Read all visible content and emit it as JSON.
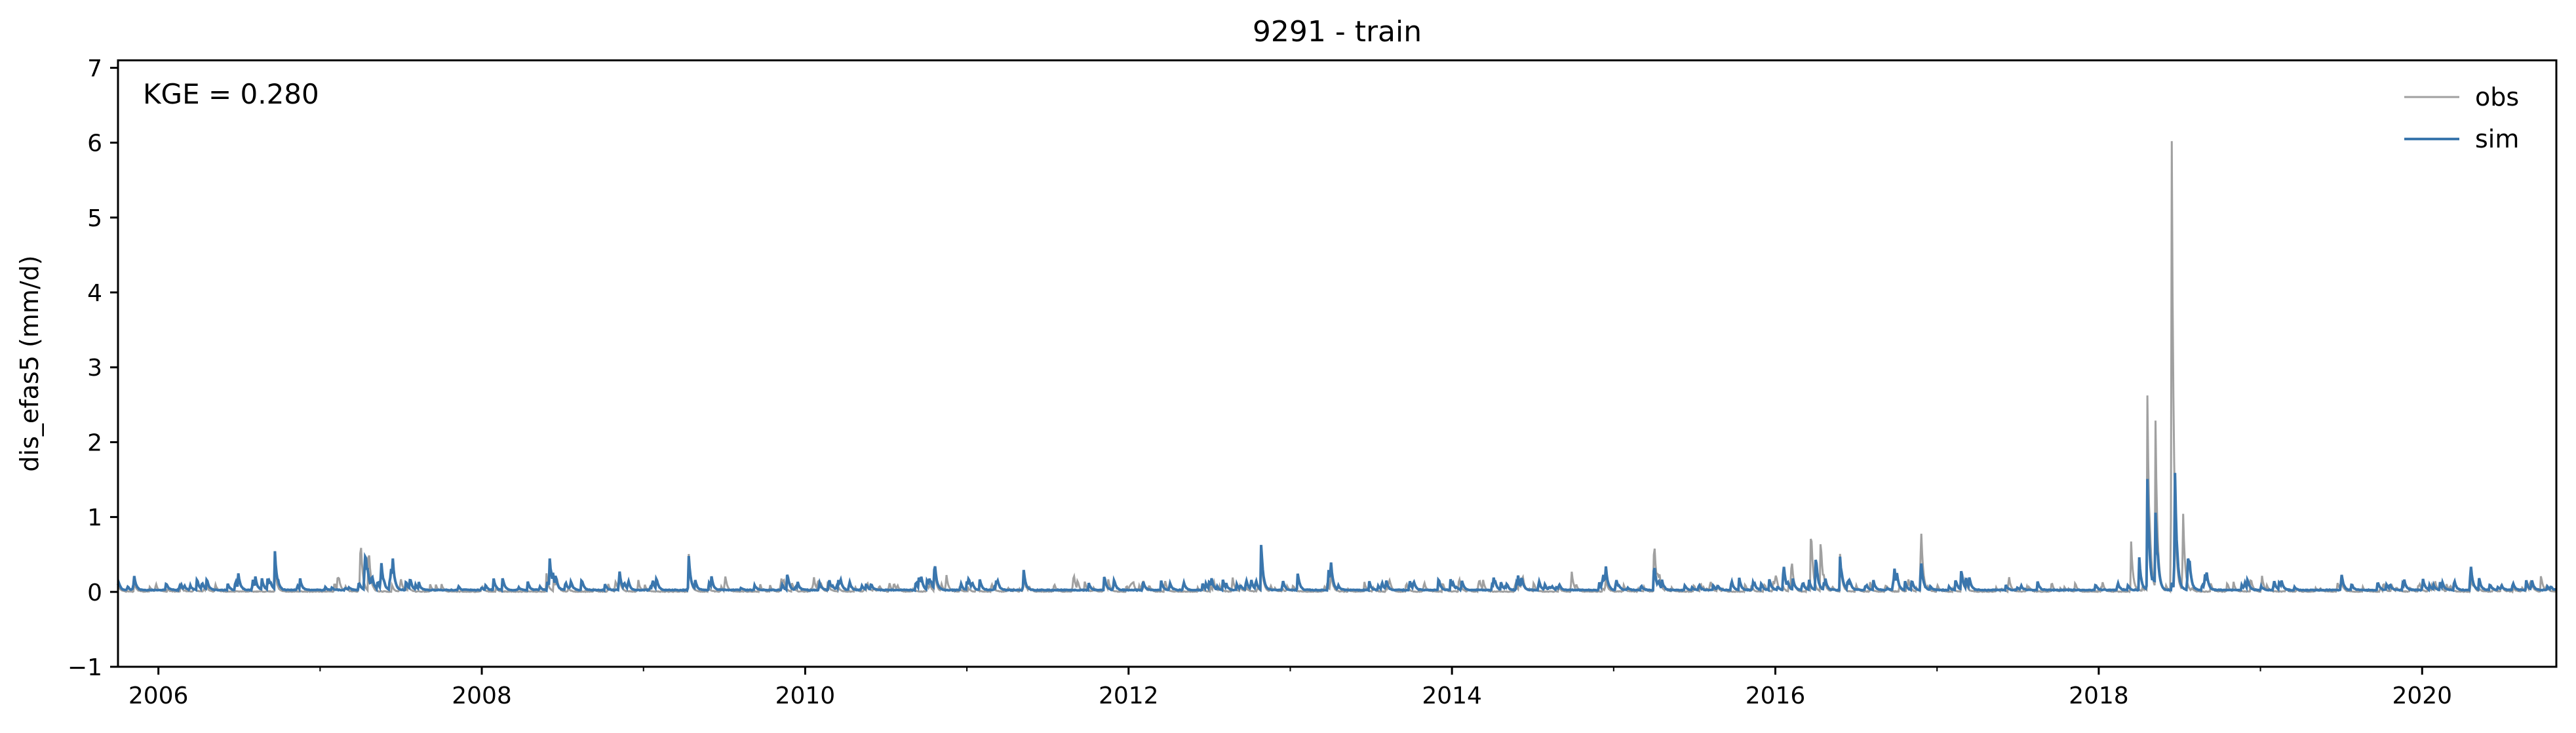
{
  "chart_data": {
    "type": "line",
    "title": "9291 - train",
    "ylabel": "dis_efas5 (mm/d)",
    "xlabel": "",
    "annotation": "KGE = 0.280",
    "xlim": [
      2005.75,
      2020.83
    ],
    "ylim": [
      -1,
      7.1
    ],
    "x_ticks": [
      "2006",
      "2008",
      "2010",
      "2012",
      "2014",
      "2016",
      "2018",
      "2020"
    ],
    "x_tick_values": [
      2006,
      2008,
      2010,
      2012,
      2014,
      2016,
      2018,
      2020
    ],
    "y_ticks": [
      "−1",
      "0",
      "1",
      "2",
      "3",
      "4",
      "5",
      "6",
      "7"
    ],
    "y_tick_values": [
      -1,
      0,
      1,
      2,
      3,
      4,
      5,
      6,
      7
    ],
    "legend_position": "top-right",
    "grid": false,
    "series": [
      {
        "name": "obs",
        "color": "#a0a0a0",
        "peaks": [
          [
            2005.85,
            0.12
          ],
          [
            2006.72,
            0.35
          ],
          [
            2007.25,
            0.72
          ],
          [
            2007.3,
            0.65
          ],
          [
            2007.75,
            0.1
          ],
          [
            2008.4,
            0.25
          ],
          [
            2008.85,
            0.2
          ],
          [
            2009.28,
            0.45
          ],
          [
            2010.8,
            0.3
          ],
          [
            2011.35,
            0.25
          ],
          [
            2011.85,
            0.15
          ],
          [
            2012.82,
            0.5
          ],
          [
            2013.25,
            0.3
          ],
          [
            2014.95,
            0.2
          ],
          [
            2015.25,
            0.77
          ],
          [
            2016.1,
            0.45
          ],
          [
            2016.22,
            0.92
          ],
          [
            2016.28,
            0.75
          ],
          [
            2016.4,
            0.5
          ],
          [
            2016.9,
            0.97
          ],
          [
            2017.15,
            0.3
          ],
          [
            2018.2,
            0.65
          ],
          [
            2018.3,
            2.7
          ],
          [
            2018.35,
            2.4
          ],
          [
            2018.45,
            6.72
          ],
          [
            2018.52,
            1.2
          ],
          [
            2019.5,
            0.15
          ],
          [
            2020.3,
            0.2
          ]
        ]
      },
      {
        "name": "sim",
        "color": "#3a76ad",
        "peaks": [
          [
            2005.85,
            0.15
          ],
          [
            2006.72,
            0.38
          ],
          [
            2007.28,
            0.45
          ],
          [
            2008.42,
            0.38
          ],
          [
            2008.85,
            0.3
          ],
          [
            2009.28,
            0.42
          ],
          [
            2010.8,
            0.4
          ],
          [
            2011.35,
            0.3
          ],
          [
            2011.85,
            0.2
          ],
          [
            2012.82,
            0.62
          ],
          [
            2013.25,
            0.35
          ],
          [
            2014.95,
            0.3
          ],
          [
            2015.25,
            0.4
          ],
          [
            2016.05,
            0.4
          ],
          [
            2016.25,
            0.5
          ],
          [
            2016.4,
            0.45
          ],
          [
            2016.9,
            0.45
          ],
          [
            2017.15,
            0.2
          ],
          [
            2018.25,
            0.45
          ],
          [
            2018.3,
            1.5
          ],
          [
            2018.35,
            1.0
          ],
          [
            2018.47,
            1.78
          ],
          [
            2018.55,
            0.5
          ],
          [
            2019.5,
            0.2
          ],
          [
            2020.3,
            0.25
          ]
        ]
      }
    ]
  }
}
